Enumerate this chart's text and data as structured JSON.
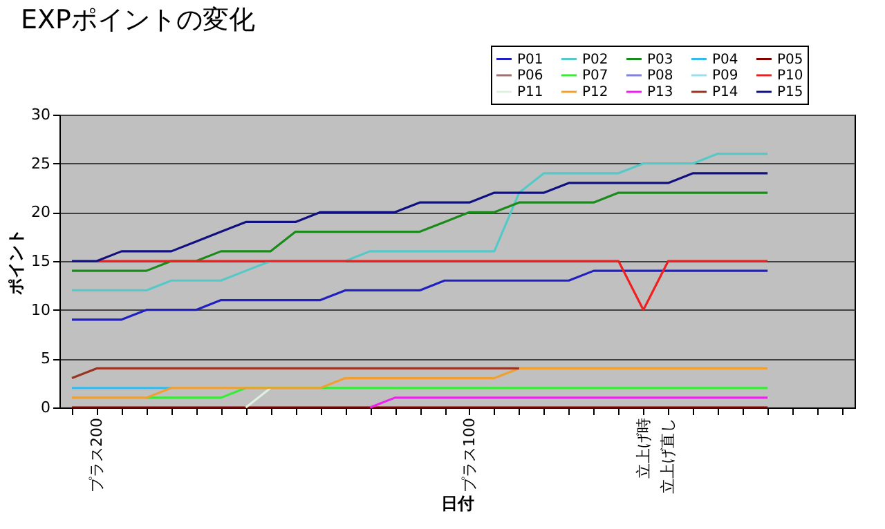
{
  "chart_data": {
    "type": "line",
    "title": "EXPポイントの変化",
    "xlabel": "日付",
    "ylabel": "ポイント",
    "categories": [
      null,
      "プラス200",
      null,
      null,
      null,
      null,
      null,
      null,
      null,
      null,
      null,
      null,
      null,
      null,
      null,
      null,
      "プラス100",
      null,
      null,
      null,
      null,
      null,
      null,
      "立上げ時",
      "立上げ直し",
      null,
      null,
      null,
      null,
      null,
      null,
      null
    ],
    "series": [
      {
        "name": "P01",
        "color": "#2020c0",
        "values": [
          9,
          9,
          9,
          10,
          10,
          10,
          11,
          11,
          11,
          11,
          11,
          12,
          12,
          12,
          12,
          13,
          13,
          13,
          13,
          13,
          13,
          14,
          14,
          14,
          14,
          14,
          14,
          14,
          14,
          null,
          null,
          null
        ]
      },
      {
        "name": "P02",
        "color": "#55c8c8",
        "values": [
          12,
          12,
          12,
          12,
          13,
          13,
          13,
          14,
          15,
          null,
          null,
          15,
          16,
          16,
          16,
          16,
          16,
          16,
          22,
          24,
          24,
          24,
          24,
          25,
          25,
          25,
          26,
          26,
          26,
          null,
          null,
          null
        ]
      },
      {
        "name": "P03",
        "color": "#1a8a1a",
        "values": [
          14,
          14,
          14,
          14,
          15,
          15,
          16,
          16,
          16,
          18,
          18,
          18,
          18,
          18,
          18,
          19,
          20,
          20,
          21,
          21,
          21,
          21,
          22,
          22,
          22,
          22,
          22,
          22,
          22,
          null,
          null,
          null
        ]
      },
      {
        "name": "P04",
        "color": "#33bbee",
        "values": [
          2,
          2,
          2,
          2,
          2,
          null,
          null,
          null,
          null,
          null,
          null,
          null,
          null,
          null,
          null,
          null,
          null,
          null,
          null,
          null,
          null,
          null,
          null,
          null,
          null,
          null,
          null,
          null,
          null,
          null,
          null,
          null
        ]
      },
      {
        "name": "P05",
        "color": "#800000",
        "values": [
          0,
          0,
          0,
          0,
          0,
          0,
          0,
          0,
          0,
          0,
          0,
          0,
          0,
          0,
          0,
          0,
          0,
          0,
          0,
          0,
          0,
          0,
          0,
          0,
          0,
          0,
          0,
          0,
          0,
          null,
          null,
          null
        ]
      },
      {
        "name": "P06",
        "color": "#a07070",
        "values": [
          null,
          null,
          null,
          null,
          null,
          null,
          null,
          null,
          null,
          null,
          null,
          null,
          null,
          null,
          null,
          null,
          null,
          null,
          null,
          null,
          null,
          null,
          null,
          null,
          null,
          null,
          null,
          null,
          null,
          null,
          null,
          null
        ]
      },
      {
        "name": "P07",
        "color": "#33ee33",
        "values": [
          null,
          null,
          null,
          1,
          1,
          1,
          1,
          2,
          null,
          null,
          2,
          2,
          2,
          2,
          2,
          2,
          2,
          2,
          2,
          2,
          2,
          2,
          2,
          2,
          2,
          2,
          2,
          2,
          2,
          null,
          null,
          null
        ]
      },
      {
        "name": "P08",
        "color": "#8080e0",
        "values": [
          null,
          null,
          null,
          null,
          null,
          null,
          null,
          null,
          null,
          null,
          null,
          null,
          null,
          null,
          null,
          null,
          null,
          null,
          null,
          null,
          null,
          null,
          null,
          null,
          null,
          null,
          null,
          null,
          null,
          null,
          null,
          null
        ]
      },
      {
        "name": "P09",
        "color": "#99e0ee",
        "values": [
          null,
          null,
          null,
          null,
          null,
          null,
          null,
          null,
          null,
          null,
          null,
          null,
          null,
          null,
          null,
          null,
          null,
          null,
          null,
          null,
          null,
          null,
          null,
          null,
          null,
          null,
          null,
          null,
          null,
          null,
          null,
          null
        ]
      },
      {
        "name": "P10",
        "color": "#ee2020",
        "values": [
          null,
          15,
          15,
          15,
          15,
          15,
          15,
          15,
          15,
          15,
          15,
          15,
          15,
          15,
          15,
          15,
          15,
          15,
          15,
          15,
          15,
          15,
          15,
          10,
          15,
          15,
          15,
          15,
          15,
          null,
          null,
          null
        ]
      },
      {
        "name": "P11",
        "color": "#e0f0e0",
        "values": [
          null,
          null,
          null,
          null,
          null,
          null,
          null,
          0,
          2,
          null,
          null,
          null,
          null,
          null,
          null,
          null,
          null,
          null,
          null,
          null,
          null,
          null,
          null,
          null,
          null,
          null,
          null,
          null,
          null,
          null,
          null,
          null
        ]
      },
      {
        "name": "P12",
        "color": "#f0a030",
        "values": [
          1,
          1,
          1,
          1,
          2,
          2,
          2,
          2,
          2,
          2,
          2,
          3,
          3,
          3,
          3,
          3,
          3,
          3,
          4,
          4,
          4,
          4,
          4,
          4,
          4,
          4,
          4,
          4,
          4,
          null,
          null,
          null
        ]
      },
      {
        "name": "P13",
        "color": "#ee20ee",
        "values": [
          null,
          null,
          null,
          null,
          null,
          null,
          null,
          null,
          null,
          null,
          null,
          null,
          0,
          1,
          1,
          1,
          1,
          1,
          1,
          1,
          1,
          1,
          1,
          1,
          1,
          1,
          1,
          1,
          1,
          null,
          null,
          null
        ]
      },
      {
        "name": "P14",
        "color": "#993322",
        "values": [
          3,
          4,
          4,
          4,
          4,
          4,
          4,
          4,
          4,
          4,
          4,
          4,
          4,
          4,
          4,
          4,
          4,
          4,
          4,
          null,
          null,
          null,
          null,
          null,
          null,
          null,
          null,
          null,
          null,
          null,
          null,
          null
        ]
      },
      {
        "name": "P15",
        "color": "#101080",
        "values": [
          15,
          15,
          16,
          16,
          16,
          17,
          18,
          19,
          19,
          19,
          20,
          20,
          20,
          20,
          21,
          21,
          21,
          22,
          22,
          22,
          23,
          23,
          23,
          23,
          23,
          24,
          24,
          24,
          24,
          null,
          null,
          null
        ]
      }
    ],
    "ylim": [
      0,
      30
    ],
    "yticks": [
      0,
      5,
      10,
      15,
      20,
      25,
      30
    ],
    "grid": "y",
    "legend": "top right"
  }
}
